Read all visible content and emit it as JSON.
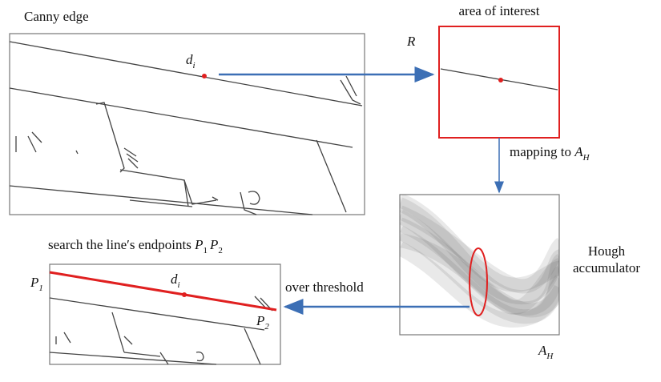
{
  "canny": {
    "title": "Canny edge",
    "point": {
      "base": "d",
      "sub": "i"
    }
  },
  "roi": {
    "title": "area of interest",
    "label": "R"
  },
  "mapping": {
    "text": "mapping to ",
    "base": "A",
    "sub": "H"
  },
  "hough": {
    "title": [
      "Hough",
      "accumulator"
    ],
    "label": {
      "base": "A",
      "sub": "H"
    }
  },
  "threshold": "over threshold",
  "result": {
    "title": "search the line′s endpoints ",
    "p1": {
      "base": "P",
      "sub": "1"
    },
    "p2": {
      "base": "P",
      "sub": "2"
    },
    "point": {
      "base": "d",
      "sub": "i"
    }
  }
}
